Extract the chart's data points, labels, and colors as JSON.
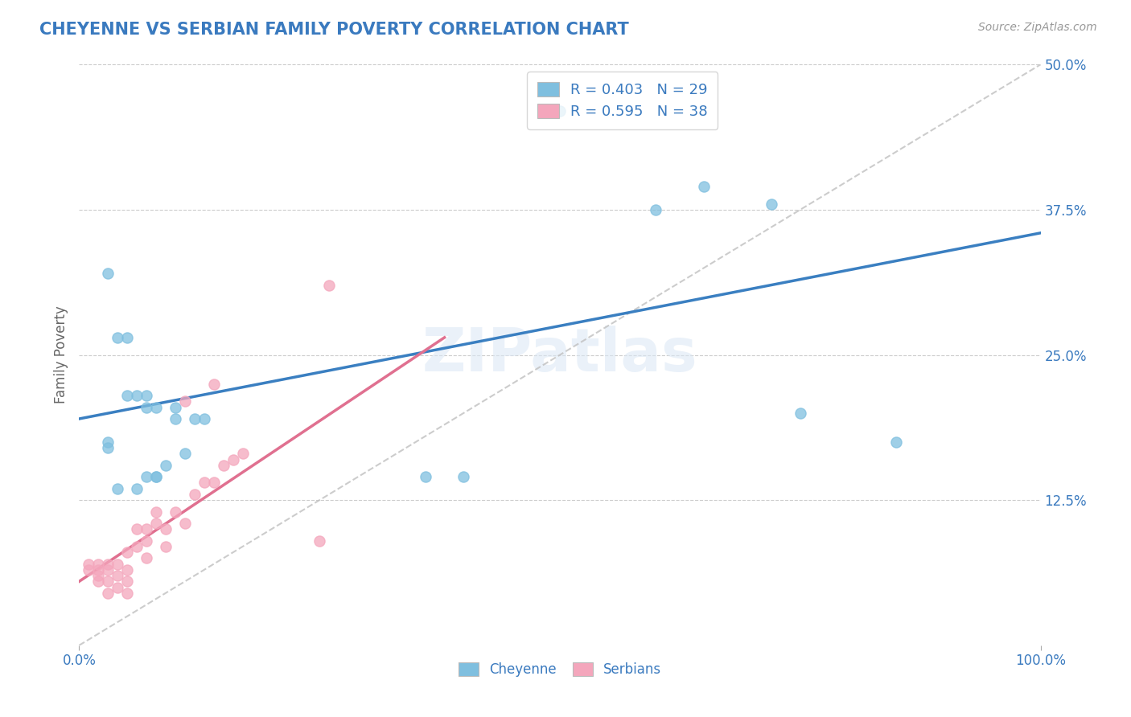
{
  "title": "CHEYENNE VS SERBIAN FAMILY POVERTY CORRELATION CHART",
  "source": "Source: ZipAtlas.com",
  "ylabel": "Family Poverty",
  "xlim": [
    0,
    1
  ],
  "ylim": [
    0,
    0.5
  ],
  "y_tick_labels": [
    "12.5%",
    "25.0%",
    "37.5%",
    "50.0%"
  ],
  "y_tick_values": [
    0.125,
    0.25,
    0.375,
    0.5
  ],
  "cheyenne_color": "#7fbfdf",
  "cheyenne_line_color": "#3a7fc1",
  "serbian_color": "#f4a6bc",
  "serbian_line_color": "#e07090",
  "cheyenne_R": 0.403,
  "cheyenne_N": 29,
  "serbian_R": 0.595,
  "serbian_N": 38,
  "watermark": "ZIPatlas",
  "background_color": "#ffffff",
  "grid_color": "#cccccc",
  "cheyenne_line_x0": 0.0,
  "cheyenne_line_y0": 0.195,
  "cheyenne_line_x1": 1.0,
  "cheyenne_line_y1": 0.355,
  "serbian_line_x0": 0.0,
  "serbian_line_y0": 0.055,
  "serbian_line_x1": 0.38,
  "serbian_line_y1": 0.265,
  "cheyenne_scatter_x": [
    0.03,
    0.04,
    0.05,
    0.06,
    0.07,
    0.08,
    0.1,
    0.04,
    0.06,
    0.08,
    0.1,
    0.13,
    0.05,
    0.07,
    0.09,
    0.11,
    0.12,
    0.03,
    0.07,
    0.08,
    0.36,
    0.4,
    0.6,
    0.65,
    0.72,
    0.75,
    0.85,
    0.03,
    0.5
  ],
  "cheyenne_scatter_y": [
    0.32,
    0.265,
    0.265,
    0.215,
    0.215,
    0.205,
    0.205,
    0.135,
    0.135,
    0.145,
    0.195,
    0.195,
    0.215,
    0.205,
    0.155,
    0.165,
    0.195,
    0.175,
    0.145,
    0.145,
    0.145,
    0.145,
    0.375,
    0.395,
    0.38,
    0.2,
    0.175,
    0.17,
    0.46
  ],
  "serbian_scatter_x": [
    0.01,
    0.01,
    0.02,
    0.02,
    0.02,
    0.02,
    0.03,
    0.03,
    0.03,
    0.03,
    0.04,
    0.04,
    0.04,
    0.05,
    0.05,
    0.05,
    0.05,
    0.06,
    0.06,
    0.07,
    0.07,
    0.07,
    0.08,
    0.08,
    0.09,
    0.09,
    0.1,
    0.11,
    0.12,
    0.13,
    0.14,
    0.15,
    0.16,
    0.17,
    0.25,
    0.26,
    0.11,
    0.14
  ],
  "serbian_scatter_y": [
    0.07,
    0.065,
    0.07,
    0.065,
    0.06,
    0.055,
    0.07,
    0.065,
    0.055,
    0.045,
    0.07,
    0.06,
    0.05,
    0.08,
    0.065,
    0.055,
    0.045,
    0.1,
    0.085,
    0.1,
    0.09,
    0.075,
    0.115,
    0.105,
    0.1,
    0.085,
    0.115,
    0.105,
    0.13,
    0.14,
    0.14,
    0.155,
    0.16,
    0.165,
    0.09,
    0.31,
    0.21,
    0.225
  ]
}
